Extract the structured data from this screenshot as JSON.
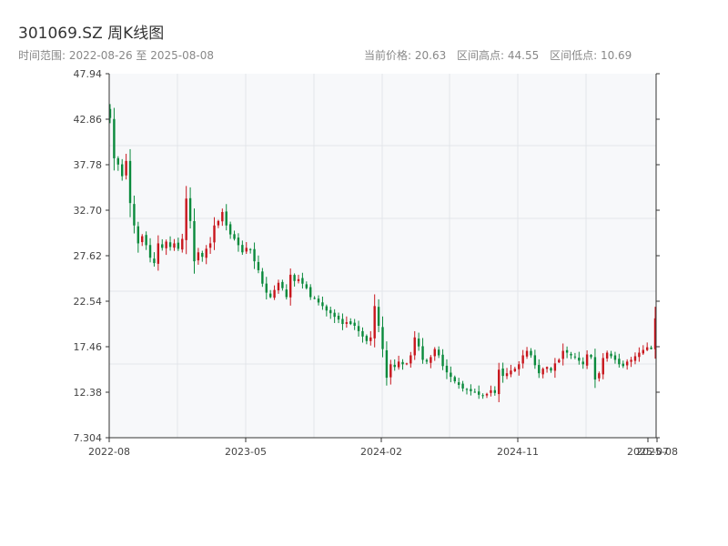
{
  "header": {
    "title": "301069.SZ 周K线图",
    "range_label": "时间范围: 2022-08-26 至 2025-08-08",
    "current_price": "当前价格: 20.63",
    "range_high": "区间高点: 44.55",
    "range_low": "区间低点: 10.69"
  },
  "colors": {
    "up": "#c8161d",
    "down": "#0a8a3c",
    "plot_bg": "#f7f8fa",
    "grid": "#e3e6ea",
    "axis": "#333333"
  },
  "chart_data": {
    "type": "candlestick",
    "title": "301069.SZ 周K线图",
    "x_range": [
      "2022-08-26",
      "2025-08-08"
    ],
    "ylim": [
      7.304,
      47.94
    ],
    "y_ticks": [
      "47.94",
      "42.86",
      "37.78",
      "32.70",
      "27.62",
      "22.54",
      "17.46",
      "12.38",
      "7.304"
    ],
    "x_ticks": [
      "2022-08",
      "2023-05",
      "2024-02",
      "2024-11",
      "2025-07",
      "2025-08"
    ],
    "grid": true,
    "closes": [
      43.0,
      38.5,
      37.8,
      36.5,
      38.2,
      33.5,
      31.0,
      29.0,
      29.8,
      28.8,
      27.4,
      26.8,
      29.0,
      28.5,
      29.2,
      28.6,
      29.0,
      28.4,
      29.5,
      34.0,
      31.5,
      27.0,
      28.0,
      27.5,
      28.4,
      29.0,
      31.0,
      31.5,
      32.5,
      31.0,
      30.0,
      29.5,
      28.8,
      28.0,
      28.5,
      28.3,
      27.0,
      26.0,
      24.5,
      23.5,
      23.0,
      23.8,
      24.6,
      24.0,
      23.0,
      25.5,
      24.8,
      25.0,
      24.5,
      24.0,
      23.0,
      22.8,
      22.4,
      22.0,
      21.5,
      21.2,
      20.8,
      20.5,
      20.0,
      20.2,
      20.0,
      19.8,
      19.2,
      18.6,
      18.1,
      18.5,
      22.0,
      19.8,
      17.2,
      14.0,
      15.5,
      15.2,
      15.8,
      15.5,
      15.6,
      16.5,
      18.5,
      17.5,
      16.0,
      15.8,
      16.3,
      17.2,
      16.5,
      15.3,
      14.6,
      14.1,
      13.6,
      13.2,
      12.8,
      12.7,
      12.5,
      12.4,
      12.1,
      12.0,
      12.2,
      12.6,
      12.3,
      14.9,
      14.2,
      14.5,
      14.8,
      15.0,
      15.5,
      16.5,
      17.0,
      16.5,
      15.4,
      14.5,
      15.0,
      15.2,
      14.8,
      15.6,
      16.0,
      17.0,
      16.8,
      16.5,
      16.3,
      15.9,
      15.5,
      16.6,
      16.3,
      13.8,
      14.5,
      16.2,
      16.8,
      16.4,
      16.0,
      15.5,
      15.3,
      15.8,
      16.0,
      16.4,
      16.8,
      17.1,
      17.4,
      17.2,
      20.63
    ]
  }
}
